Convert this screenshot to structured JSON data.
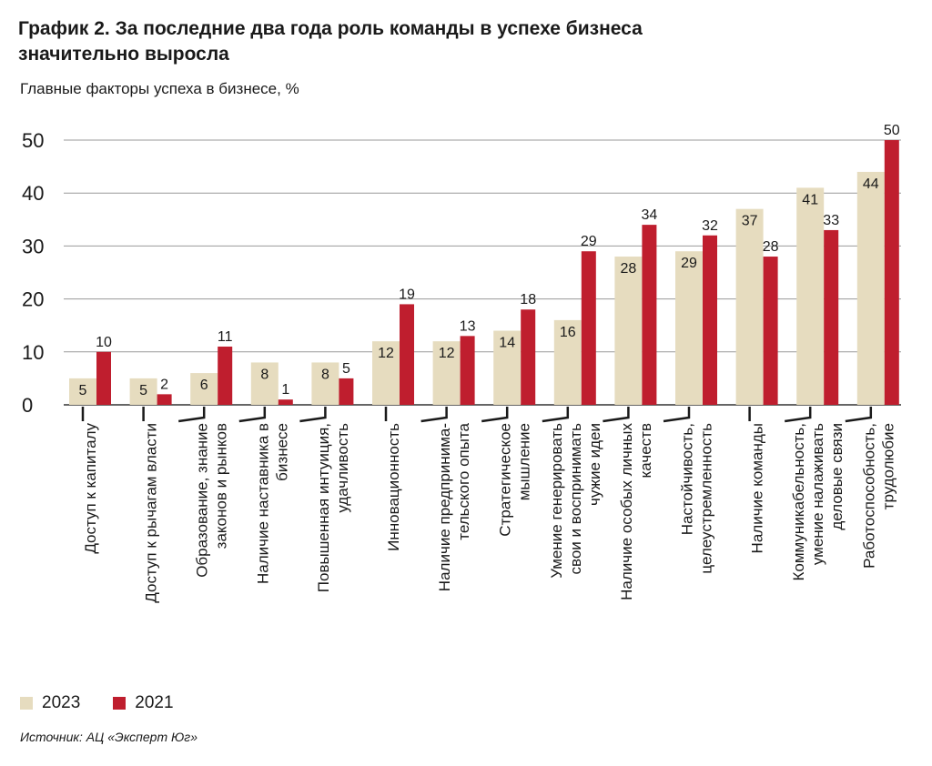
{
  "header": {
    "title": "График 2. За последние два года роль команды в успехе бизнеса значительно выросла",
    "subtitle": "Главные факторы успеха в бизнесе, %"
  },
  "colors": {
    "2023": "#e6dcbf",
    "2021": "#bf1e2e"
  },
  "legend": {
    "items": [
      {
        "label": "2023"
      },
      {
        "label": "2021"
      }
    ]
  },
  "source": "Источник: АЦ «Эксперт Юг»",
  "chart_data": {
    "type": "bar",
    "title": "График 2. За последние два года роль команды в успехе бизнеса значительно выросла",
    "ylabel": "Главные факторы успеха в бизнесе, %",
    "ylim": [
      0,
      50
    ],
    "yticks": [
      0,
      10,
      20,
      30,
      40,
      50
    ],
    "grid": true,
    "legend_position": "bottom-left",
    "categories": [
      "Доступ к капиталу",
      "Доступ к рычагам власти",
      "Образование, знание\nзаконов и рынков",
      "Наличие наставника в\nбизнесе",
      "Повышенная интуиция,\nудачливость",
      "Инновационность",
      "Наличие предпринима-\nтельского опыта",
      "Стратегическое\nмышление",
      "Умение генерировать\nсвои и воспринимать\nчужие идеи",
      "Наличие особых личных\nкачеств",
      "Настойчивость,\nцелеустремленность",
      "Наличие команды",
      "Коммуникабельность,\nумение налаживать\nделовые связи",
      "Работоспособность,\nтрудолюбие"
    ],
    "series": [
      {
        "name": "2023",
        "values": [
          5,
          5,
          6,
          8,
          8,
          12,
          12,
          14,
          16,
          28,
          29,
          37,
          41,
          44
        ]
      },
      {
        "name": "2021",
        "values": [
          10,
          2,
          11,
          1,
          5,
          19,
          13,
          18,
          29,
          34,
          32,
          28,
          33,
          50
        ]
      }
    ]
  }
}
